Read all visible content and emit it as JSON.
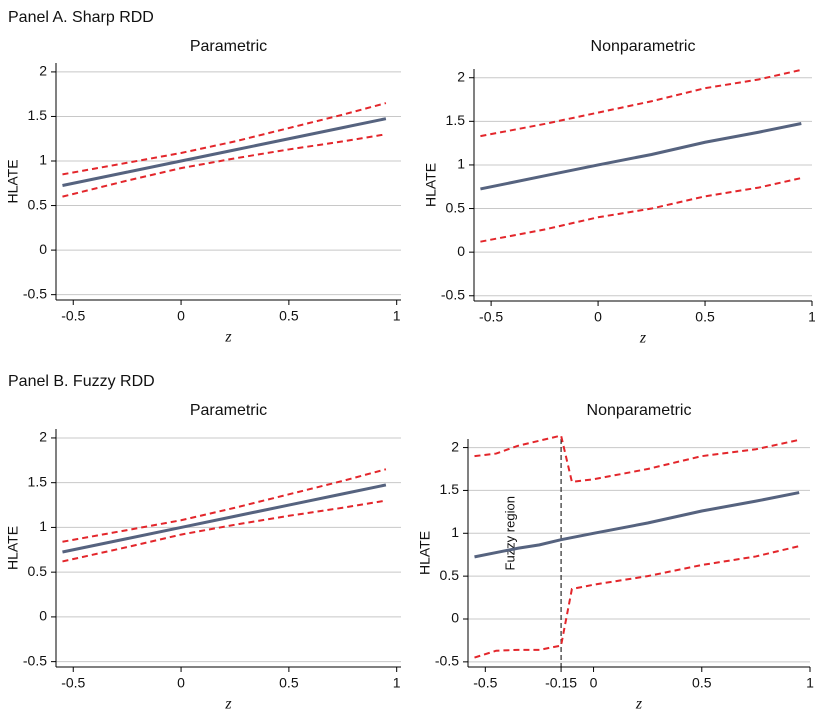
{
  "panel_titles": [
    "Panel A. Sharp RDD",
    "Panel B. Fuzzy RDD"
  ],
  "chart_data": [
    {
      "type": "line",
      "title": "Parametric",
      "xlabel": "z",
      "ylabel": "HLATE",
      "x": [
        -0.55,
        -0.25,
        0,
        0.25,
        0.5,
        0.75,
        0.95
      ],
      "series": [
        {
          "color": "#e3262b",
          "dashed": true,
          "values": [
            0.85,
            0.98,
            1.09,
            1.22,
            1.37,
            1.52,
            1.65
          ]
        },
        {
          "color": "#e3262b",
          "dashed": true,
          "values": [
            0.6,
            0.78,
            0.92,
            1.03,
            1.13,
            1.22,
            1.3
          ]
        },
        {
          "color": "#56637f",
          "dashed": false,
          "values": [
            0.725,
            0.875,
            1.0,
            1.125,
            1.25,
            1.375,
            1.475
          ]
        }
      ],
      "xlim": [
        -0.58,
        1.02
      ],
      "ylim": [
        -0.56,
        2.1
      ],
      "xticks": [
        -0.5,
        0,
        0.5,
        1
      ],
      "yticks": [
        -0.5,
        0,
        0.5,
        1,
        1.5,
        2
      ],
      "grid": true
    },
    {
      "type": "line",
      "title": "Nonparametric",
      "xlabel": "z",
      "ylabel": "HLATE",
      "x": [
        -0.55,
        -0.25,
        0,
        0.25,
        0.5,
        0.75,
        0.95
      ],
      "series": [
        {
          "color": "#e3262b",
          "dashed": true,
          "values": [
            1.33,
            1.47,
            1.6,
            1.73,
            1.88,
            1.98,
            2.09
          ]
        },
        {
          "color": "#e3262b",
          "dashed": true,
          "values": [
            0.12,
            0.26,
            0.4,
            0.5,
            0.64,
            0.74,
            0.85
          ]
        },
        {
          "color": "#56637f",
          "dashed": false,
          "values": [
            0.725,
            0.875,
            1.0,
            1.12,
            1.26,
            1.375,
            1.475
          ]
        }
      ],
      "xlim": [
        -0.58,
        1.0
      ],
      "ylim": [
        -0.56,
        2.1
      ],
      "xticks": [
        -0.5,
        0,
        0.5,
        1
      ],
      "yticks": [
        -0.5,
        0,
        0.5,
        1,
        1.5,
        2
      ],
      "grid": true
    },
    {
      "type": "line",
      "title": "Parametric",
      "xlabel": "z",
      "ylabel": "HLATE",
      "x": [
        -0.55,
        -0.25,
        0,
        0.25,
        0.5,
        0.75,
        0.95
      ],
      "series": [
        {
          "color": "#e3262b",
          "dashed": true,
          "values": [
            0.84,
            0.97,
            1.08,
            1.22,
            1.37,
            1.52,
            1.65
          ]
        },
        {
          "color": "#e3262b",
          "dashed": true,
          "values": [
            0.62,
            0.78,
            0.92,
            1.03,
            1.13,
            1.22,
            1.3
          ]
        },
        {
          "color": "#56637f",
          "dashed": false,
          "values": [
            0.725,
            0.875,
            1.0,
            1.125,
            1.25,
            1.375,
            1.475
          ]
        }
      ],
      "xlim": [
        -0.58,
        1.02
      ],
      "ylim": [
        -0.56,
        2.1
      ],
      "xticks": [
        -0.5,
        0,
        0.5,
        1
      ],
      "yticks": [
        -0.5,
        0,
        0.5,
        1,
        1.5,
        2
      ],
      "grid": true
    },
    {
      "type": "line",
      "title": "Nonparametric",
      "xlabel": "z",
      "ylabel": "HLATE",
      "x": [
        -0.55,
        -0.45,
        -0.35,
        -0.25,
        -0.15,
        -0.1,
        0,
        0.25,
        0.5,
        0.75,
        0.95
      ],
      "series": [
        {
          "color": "#e3262b",
          "dashed": true,
          "values": [
            1.9,
            1.93,
            2.02,
            2.08,
            2.14,
            1.6,
            1.63,
            1.75,
            1.9,
            1.98,
            2.09
          ]
        },
        {
          "color": "#e3262b",
          "dashed": true,
          "values": [
            -0.45,
            -0.37,
            -0.36,
            -0.36,
            -0.31,
            0.35,
            0.4,
            0.5,
            0.63,
            0.73,
            0.85
          ]
        },
        {
          "color": "#56637f",
          "dashed": false,
          "values": [
            0.725,
            0.775,
            0.825,
            0.865,
            0.925,
            0.95,
            1.0,
            1.12,
            1.26,
            1.375,
            1.475
          ]
        }
      ],
      "xlim": [
        -0.58,
        1.0
      ],
      "ylim": [
        -0.56,
        2.1
      ],
      "xticks": [
        -0.5,
        -0.15,
        0,
        0.5,
        1
      ],
      "yticks": [
        -0.5,
        0,
        0.5,
        1,
        1.5,
        2
      ],
      "grid": true,
      "vline": -0.15,
      "annotation": "Fuzzy region"
    }
  ]
}
